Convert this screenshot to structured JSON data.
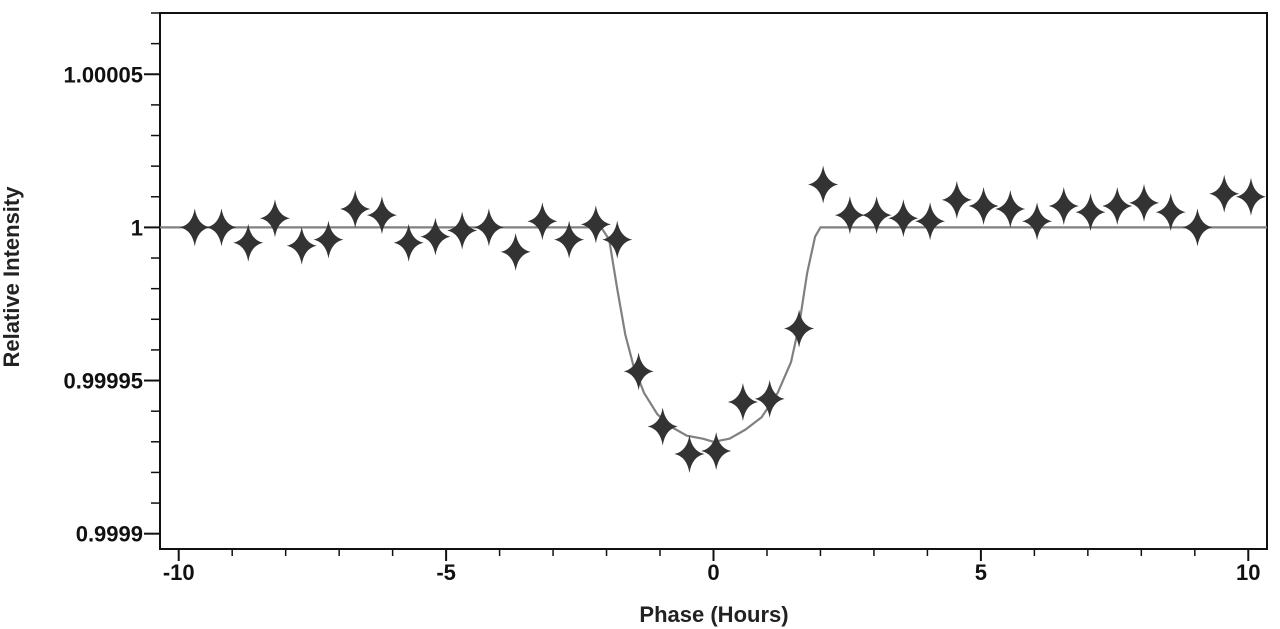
{
  "chart_data": {
    "type": "scatter",
    "xlabel": "Phase (Hours)",
    "ylabel": "Relative Intensity",
    "xlim": [
      -10.35,
      10.35
    ],
    "ylim": [
      0.999895,
      1.00007
    ],
    "x_ticks": [
      -10,
      -5,
      0,
      5,
      10
    ],
    "x_tick_labels": [
      "-10",
      "-5",
      "0",
      "5",
      "10"
    ],
    "y_ticks": [
      0.9999,
      0.99995,
      1,
      1.00005
    ],
    "y_tick_labels": [
      "0.9999",
      "0.99995",
      "1",
      "1.00005"
    ],
    "grid": false,
    "series": [
      {
        "kind": "points",
        "marker": "four-point-star",
        "color": "#333333",
        "x": [
          -9.7,
          -9.2,
          -8.7,
          -8.2,
          -7.7,
          -7.2,
          -6.7,
          -6.2,
          -5.7,
          -5.2,
          -4.7,
          -4.2,
          -3.7,
          -3.2,
          -2.7,
          -2.2,
          -1.8,
          -1.4,
          -0.95,
          -0.45,
          0.05,
          0.55,
          1.05,
          1.6,
          2.05,
          2.55,
          3.05,
          3.55,
          4.05,
          4.55,
          5.05,
          5.55,
          6.05,
          6.55,
          7.05,
          7.55,
          8.05,
          8.55,
          9.05,
          9.55,
          10.05
        ],
        "y": [
          1.0,
          1.0,
          0.999995,
          1.000003,
          0.999994,
          0.999996,
          1.000006,
          1.000004,
          0.999995,
          0.999997,
          0.999999,
          1.0,
          0.999992,
          1.000002,
          0.999996,
          1.000001,
          0.999996,
          0.999953,
          0.999935,
          0.999926,
          0.999927,
          0.999943,
          0.999944,
          0.999967,
          1.000014,
          1.000004,
          1.000004,
          1.000003,
          1.000002,
          1.000009,
          1.000007,
          1.000006,
          1.000002,
          1.000007,
          1.000005,
          1.000007,
          1.000008,
          1.000005,
          1.0,
          1.000011,
          1.00001
        ]
      },
      {
        "kind": "model-curve",
        "color": "#808080",
        "x": [
          -10.35,
          -2.1,
          -1.95,
          -1.8,
          -1.65,
          -1.5,
          -1.3,
          -1.05,
          -0.8,
          -0.5,
          -0.2,
          0.0,
          0.3,
          0.6,
          0.9,
          1.2,
          1.45,
          1.6,
          1.75,
          1.9,
          2.0,
          2.15,
          10.35
        ],
        "y": [
          1.0,
          1.0,
          0.999996,
          0.99998,
          0.999965,
          0.999955,
          0.999946,
          0.999939,
          0.999935,
          0.999932,
          0.999931,
          0.99993,
          0.999931,
          0.999934,
          0.999938,
          0.999946,
          0.999956,
          0.999968,
          0.999985,
          0.999997,
          1.0,
          1.0,
          1.0
        ]
      }
    ]
  }
}
